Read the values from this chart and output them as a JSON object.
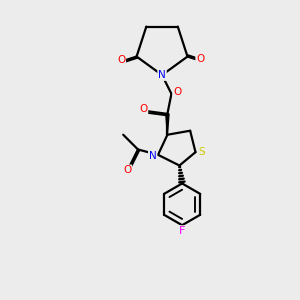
{
  "bg_color": "#ececec",
  "atom_colors": {
    "N": "#0000ff",
    "O": "#ff0000",
    "S": "#cccc00",
    "F": "#ff00ff",
    "C": "#000000"
  },
  "line_color": "#000000",
  "line_width": 1.6
}
